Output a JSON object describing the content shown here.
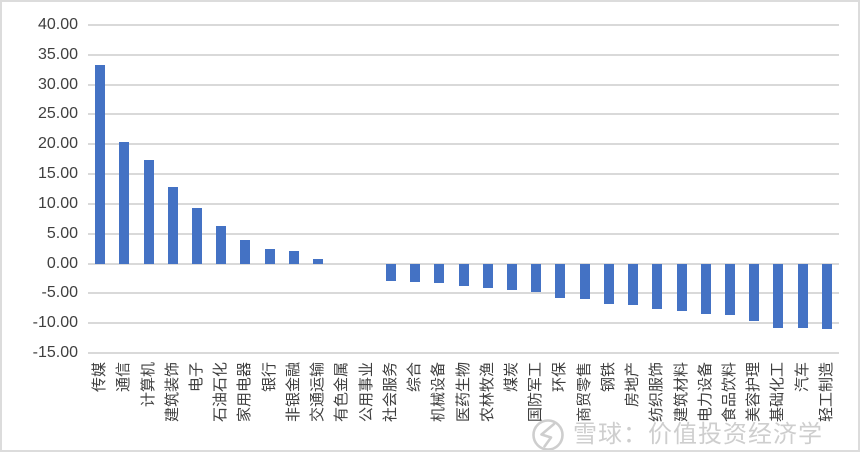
{
  "chart_data": {
    "type": "bar",
    "title": "",
    "categories": [
      "传媒",
      "通信",
      "计算机",
      "建筑装饰",
      "电子",
      "石油石化",
      "家用电器",
      "银行",
      "非银金融",
      "交通运输",
      "有色金属",
      "公用事业",
      "社会服务",
      "综合",
      "机械设备",
      "医药生物",
      "农林牧渔",
      "煤炭",
      "国防军工",
      "环保",
      "商贸零售",
      "钢铁",
      "房地产",
      "纺织服饰",
      "建筑材料",
      "电力设备",
      "食品饮料",
      "美容护理",
      "基础化工",
      "汽车",
      "轻工制造"
    ],
    "values": [
      33.3,
      20.4,
      17.4,
      12.8,
      9.3,
      6.3,
      4.0,
      2.4,
      2.1,
      0.7,
      0.0,
      0.0,
      -2.9,
      -3.1,
      -3.2,
      -3.8,
      -4.1,
      -4.4,
      -4.8,
      -5.7,
      -6.0,
      -6.8,
      -7.0,
      -7.6,
      -8.0,
      -8.4,
      -8.6,
      -9.7,
      -10.8,
      -10.8,
      -11.0
    ],
    "xlabel": "",
    "ylabel": "",
    "ylim": [
      -15,
      40
    ],
    "ytick_step": 5,
    "yticks": [
      "40.00",
      "35.00",
      "30.00",
      "25.00",
      "20.00",
      "15.00",
      "10.00",
      "5.00",
      "0.00",
      "-5.00",
      "-10.00",
      "-15.00"
    ],
    "ytick_values": [
      40,
      35,
      30,
      25,
      20,
      15,
      10,
      5,
      0,
      -5,
      -10,
      -15
    ],
    "grid": true,
    "legend": "none",
    "bar_label_rotation": "vertical-bottom-up"
  },
  "colors": {
    "bar": "#4472C4",
    "gridline": "#D9D9D9",
    "axis_text": "#3F3F3F",
    "watermark": "#C6C6C6",
    "border": "#DCDCDC",
    "background": "#FFFFFF"
  },
  "watermark": {
    "site": "雪球",
    "text": "雪球：价值投资经济学",
    "logo": "snowball-icon"
  }
}
